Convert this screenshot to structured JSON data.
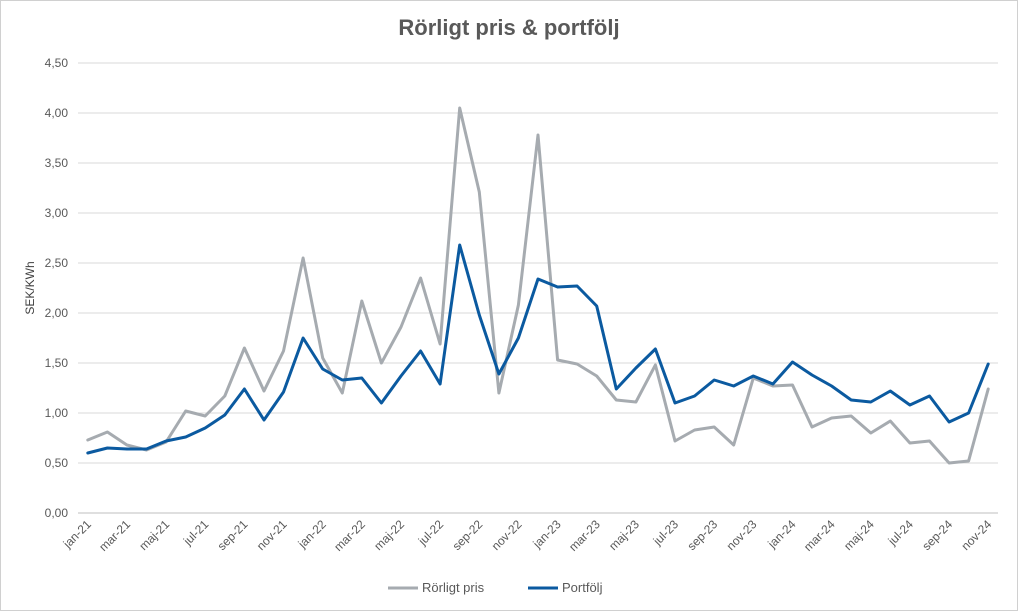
{
  "chart_data": {
    "type": "line",
    "title": "Rörligt pris & portfölj",
    "xlabel": "",
    "ylabel": "SEK/KWh",
    "ylim": [
      0,
      4.5
    ],
    "ytick_labels": [
      "0,00",
      "0,50",
      "1,00",
      "1,50",
      "2,00",
      "2,50",
      "3,00",
      "3,50",
      "4,00",
      "4,50"
    ],
    "grid": true,
    "legend_position": "bottom",
    "categories": [
      "jan-21",
      "feb-21",
      "mar-21",
      "apr-21",
      "maj-21",
      "jun-21",
      "jul-21",
      "aug-21",
      "sep-21",
      "okt-21",
      "nov-21",
      "dec-21",
      "jan-22",
      "feb-22",
      "mar-22",
      "apr-22",
      "maj-22",
      "jun-22",
      "jul-22",
      "aug-22",
      "sep-22",
      "okt-22",
      "nov-22",
      "dec-22",
      "jan-23",
      "feb-23",
      "mar-23",
      "apr-23",
      "maj-23",
      "jun-23",
      "jul-23",
      "aug-23",
      "sep-23",
      "okt-23",
      "nov-23",
      "dec-23",
      "jan-24",
      "feb-24",
      "mar-24",
      "apr-24",
      "maj-24",
      "jun-24",
      "jul-24",
      "aug-24",
      "sep-24",
      "okt-24",
      "nov-24"
    ],
    "tick_labels": [
      "jan-21",
      "mar-21",
      "maj-21",
      "jul-21",
      "sep-21",
      "nov-21",
      "jan-22",
      "mar-22",
      "maj-22",
      "jul-22",
      "sep-22",
      "nov-22",
      "jan-23",
      "mar-23",
      "maj-23",
      "jul-23",
      "sep-23",
      "nov-23",
      "jan-24",
      "mar-24",
      "maj-24",
      "jul-24",
      "sep-24",
      "nov-24"
    ],
    "series": [
      {
        "name": "Rörligt pris",
        "color": "#a6abb0",
        "values": [
          0.73,
          0.81,
          0.68,
          0.63,
          0.71,
          1.02,
          0.97,
          1.17,
          1.65,
          1.22,
          1.62,
          2.55,
          1.55,
          1.2,
          2.12,
          1.5,
          1.86,
          2.35,
          1.69,
          4.05,
          3.21,
          1.2,
          2.08,
          3.78,
          1.53,
          1.49,
          1.37,
          1.13,
          1.11,
          1.48,
          0.72,
          0.83,
          0.86,
          0.68,
          1.35,
          1.27,
          1.28,
          0.86,
          0.95,
          0.97,
          0.8,
          0.92,
          0.7,
          0.72,
          0.5,
          0.52,
          1.24
        ]
      },
      {
        "name": "Portfölj",
        "color": "#0b5aa0",
        "values": [
          0.6,
          0.65,
          0.64,
          0.64,
          0.72,
          0.76,
          0.85,
          0.98,
          1.24,
          0.93,
          1.21,
          1.75,
          1.44,
          1.33,
          1.35,
          1.1,
          1.37,
          1.62,
          1.29,
          2.68,
          1.98,
          1.39,
          1.75,
          2.34,
          2.26,
          2.27,
          2.07,
          1.24,
          1.45,
          1.64,
          1.1,
          1.17,
          1.33,
          1.27,
          1.37,
          1.29,
          1.51,
          1.38,
          1.27,
          1.13,
          1.11,
          1.22,
          1.08,
          1.17,
          0.91,
          1.0,
          1.49
        ]
      }
    ]
  }
}
